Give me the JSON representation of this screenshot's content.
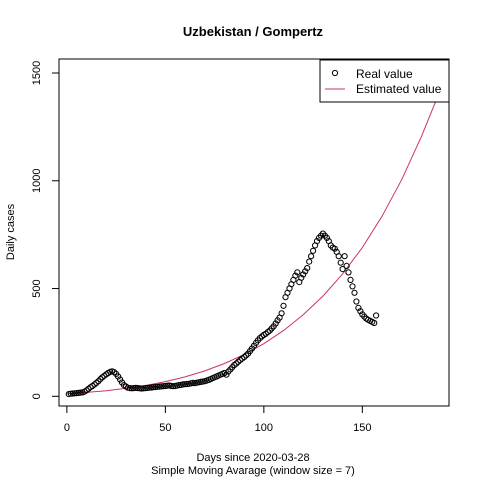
{
  "chart_data": {
    "type": "scatter",
    "title": "Uzbekistan / Gompertz",
    "xlabel": "Days since 2020-03-28",
    "subtitle": "Simple Moving Avarage (window size = 7)",
    "ylabel": "Daily cases",
    "xlim": [
      -4,
      194
    ],
    "ylim": [
      -45,
      1565
    ],
    "x_ticks": [
      0,
      50,
      100,
      150
    ],
    "y_ticks": [
      0,
      500,
      1000,
      1500
    ],
    "legend": {
      "position": "top-right",
      "entries": [
        {
          "label": "Real value",
          "marker": "circle"
        },
        {
          "label": "Estimated value",
          "marker": "line"
        }
      ]
    },
    "colors": {
      "real": "#000000",
      "estimated": "#cc3366"
    },
    "series": [
      {
        "name": "Real value",
        "kind": "points",
        "x": [
          1,
          2,
          3,
          4,
          5,
          6,
          7,
          8,
          9,
          10,
          11,
          12,
          13,
          14,
          15,
          16,
          17,
          18,
          19,
          20,
          21,
          22,
          23,
          24,
          25,
          26,
          27,
          28,
          29,
          30,
          31,
          32,
          33,
          34,
          35,
          36,
          37,
          38,
          39,
          40,
          41,
          42,
          43,
          44,
          45,
          46,
          47,
          48,
          49,
          50,
          51,
          52,
          53,
          54,
          55,
          56,
          57,
          58,
          59,
          60,
          61,
          62,
          63,
          64,
          65,
          66,
          67,
          68,
          69,
          70,
          71,
          72,
          73,
          74,
          75,
          76,
          77,
          78,
          79,
          80,
          81,
          82,
          83,
          84,
          85,
          86,
          87,
          88,
          89,
          90,
          91,
          92,
          93,
          94,
          95,
          96,
          97,
          98,
          99,
          100,
          101,
          102,
          103,
          104,
          105,
          106,
          107,
          108,
          109,
          110,
          111,
          112,
          113,
          114,
          115,
          116,
          117,
          118,
          119,
          120,
          121,
          122,
          123,
          124,
          125,
          126,
          127,
          128,
          129,
          130,
          131,
          132,
          133,
          134,
          135,
          136,
          137,
          138,
          139,
          140,
          141,
          142,
          143,
          144,
          145,
          146,
          147,
          148,
          149,
          150,
          151,
          152,
          153,
          154,
          155,
          156,
          157
        ],
        "y": [
          10,
          12,
          13,
          14,
          15,
          16,
          17,
          18,
          22,
          28,
          35,
          42,
          48,
          55,
          62,
          70,
          80,
          88,
          95,
          102,
          108,
          113,
          116,
          112,
          104,
          92,
          78,
          64,
          52,
          45,
          40,
          38,
          37,
          38,
          39,
          38,
          37,
          36,
          37,
          38,
          39,
          40,
          41,
          42,
          43,
          44,
          45,
          46,
          47,
          48,
          49,
          50,
          48,
          47,
          48,
          50,
          52,
          53,
          55,
          56,
          57,
          58,
          60,
          62,
          61,
          63,
          65,
          67,
          68,
          70,
          73,
          76,
          80,
          84,
          88,
          92,
          96,
          100,
          104,
          108,
          100,
          115,
          125,
          135,
          145,
          152,
          160,
          168,
          175,
          182,
          190,
          198,
          210,
          222,
          235,
          248,
          260,
          270,
          278,
          285,
          290,
          298,
          305,
          315,
          325,
          338,
          352,
          365,
          385,
          420,
          460,
          480,
          500,
          520,
          540,
          560,
          575,
          530,
          550,
          565,
          580,
          595,
          625,
          650,
          675,
          700,
          720,
          735,
          745,
          755,
          745,
          735,
          720,
          700,
          690,
          685,
          670,
          650,
          620,
          590,
          650,
          605,
          575,
          540,
          510,
          480,
          440,
          410,
          395,
          380,
          370,
          360,
          355,
          350,
          345,
          340,
          375
        ]
      },
      {
        "name": "Estimated value",
        "kind": "line",
        "x": [
          0,
          10,
          20,
          30,
          40,
          50,
          60,
          70,
          80,
          90,
          100,
          110,
          120,
          130,
          140,
          150,
          160,
          170,
          180,
          190,
          194
        ],
        "y": [
          12,
          18,
          26,
          37,
          50,
          68,
          90,
          118,
          152,
          194,
          244,
          305,
          378,
          465,
          568,
          690,
          835,
          1005,
          1205,
          1430,
          1530
        ]
      }
    ]
  }
}
